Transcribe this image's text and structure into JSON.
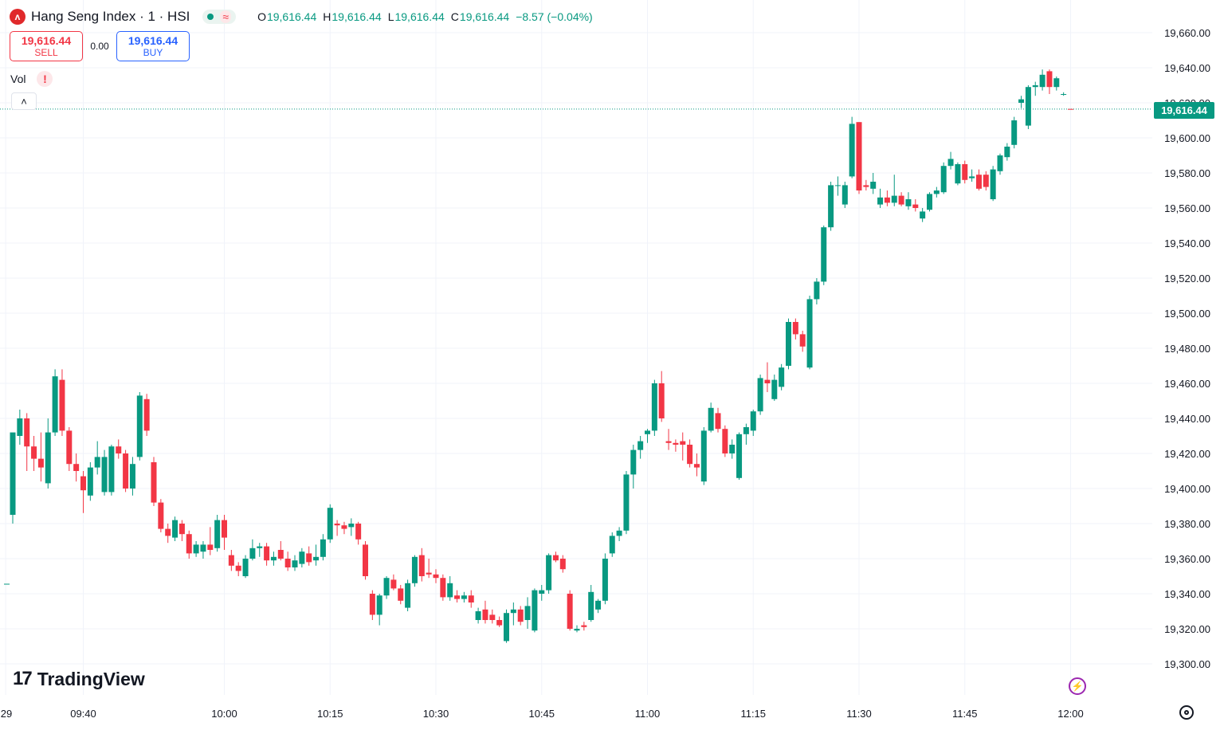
{
  "header": {
    "symbol_icon": "hang-seng-logo-icon",
    "symbol_icon_glyph": "ʌ",
    "title": "Hang Seng Index · 1 · HSI",
    "status_glyph": "≈",
    "ohlc": {
      "o_label": "O",
      "o": "19,616.44",
      "h_label": "H",
      "h": "19,616.44",
      "l_label": "L",
      "l": "19,616.44",
      "c_label": "C",
      "c": "19,616.44",
      "change": "−8.57 (−0.04%)"
    }
  },
  "trade": {
    "sell_price": "19,616.44",
    "sell_label": "SELL",
    "spread": "0.00",
    "buy_price": "19,616.44",
    "buy_label": "BUY"
  },
  "volume": {
    "label": "Vol",
    "warning": "!"
  },
  "collapse_glyph": "˄",
  "last_price_tag": "19,616.44",
  "logo": {
    "mark": "17",
    "text": "TradingView"
  },
  "colors": {
    "up": "#089981",
    "down": "#f23645",
    "grid": "#f0f3fa",
    "text": "#131722"
  },
  "chart_data": {
    "type": "candlestick",
    "y_tick_labels": [
      "19,660.00",
      "19,640.00",
      "19,620.00",
      "19,600.00",
      "19,580.00",
      "19,560.00",
      "19,540.00",
      "19,520.00",
      "19,500.00",
      "19,480.00",
      "19,460.00",
      "19,440.00",
      "19,420.00",
      "19,400.00",
      "19,380.00",
      "19,360.00",
      "19,340.00",
      "19,320.00",
      "19,300.00"
    ],
    "y_tick_values": [
      19660,
      19640,
      19620,
      19600,
      19580,
      19560,
      19540,
      19520,
      19500,
      19480,
      19460,
      19440,
      19420,
      19400,
      19380,
      19360,
      19340,
      19320,
      19300
    ],
    "ylim": [
      19295,
      19663
    ],
    "x_tick_labels": [
      "29",
      "09:40",
      "10:00",
      "10:15",
      "10:30",
      "10:45",
      "11:00",
      "11:15",
      "11:30",
      "11:45",
      "12:00"
    ],
    "x_tick_values": [
      "09:29",
      "09:40",
      "10:00",
      "10:15",
      "10:30",
      "10:45",
      "11:00",
      "11:15",
      "11:30",
      "11:45",
      "12:00"
    ],
    "last_price": 19616.44,
    "candles": [
      {
        "t": "09:30",
        "o": 19385,
        "h": 19430,
        "l": 19380,
        "c": 19432
      },
      {
        "t": "09:31",
        "o": 19430,
        "h": 19445,
        "l": 19425,
        "c": 19440
      },
      {
        "t": "09:32",
        "o": 19440,
        "h": 19443,
        "l": 19410,
        "c": 19424
      },
      {
        "t": "09:33",
        "o": 19424,
        "h": 19430,
        "l": 19410,
        "c": 19417
      },
      {
        "t": "09:34",
        "o": 19417,
        "h": 19432,
        "l": 19404,
        "c": 19412
      },
      {
        "t": "09:35",
        "o": 19403,
        "h": 19440,
        "l": 19400,
        "c": 19432
      },
      {
        "t": "09:36",
        "o": 19432,
        "h": 19468,
        "l": 19430,
        "c": 19464
      },
      {
        "t": "09:37",
        "o": 19462,
        "h": 19468,
        "l": 19430,
        "c": 19433
      },
      {
        "t": "09:38",
        "o": 19433,
        "h": 19435,
        "l": 19410,
        "c": 19414
      },
      {
        "t": "09:39",
        "o": 19414,
        "h": 19420,
        "l": 19404,
        "c": 19410
      },
      {
        "t": "09:40",
        "o": 19407,
        "h": 19410,
        "l": 19386,
        "c": 19399
      },
      {
        "t": "09:41",
        "o": 19396,
        "h": 19415,
        "l": 19393,
        "c": 19412
      },
      {
        "t": "09:42",
        "o": 19412,
        "h": 19427,
        "l": 19408,
        "c": 19418
      },
      {
        "t": "09:43",
        "o": 19398,
        "h": 19422,
        "l": 19396,
        "c": 19418
      },
      {
        "t": "09:44",
        "o": 19398,
        "h": 19425,
        "l": 19396,
        "c": 19424
      },
      {
        "t": "09:45",
        "o": 19424,
        "h": 19428,
        "l": 19417,
        "c": 19420
      },
      {
        "t": "09:46",
        "o": 19420,
        "h": 19422,
        "l": 19398,
        "c": 19400
      },
      {
        "t": "09:47",
        "o": 19400,
        "h": 19418,
        "l": 19396,
        "c": 19414
      },
      {
        "t": "09:48",
        "o": 19418,
        "h": 19455,
        "l": 19416,
        "c": 19453
      },
      {
        "t": "09:49",
        "o": 19451,
        "h": 19454,
        "l": 19430,
        "c": 19433
      },
      {
        "t": "09:50",
        "o": 19415,
        "h": 19418,
        "l": 19390,
        "c": 19392
      },
      {
        "t": "09:51",
        "o": 19392,
        "h": 19394,
        "l": 19375,
        "c": 19377
      },
      {
        "t": "09:52",
        "o": 19377,
        "h": 19380,
        "l": 19369,
        "c": 19373
      },
      {
        "t": "09:53",
        "o": 19372,
        "h": 19384,
        "l": 19370,
        "c": 19382
      },
      {
        "t": "09:54",
        "o": 19380,
        "h": 19382,
        "l": 19370,
        "c": 19374
      },
      {
        "t": "09:55",
        "o": 19374,
        "h": 19376,
        "l": 19360,
        "c": 19363
      },
      {
        "t": "09:56",
        "o": 19363,
        "h": 19370,
        "l": 19361,
        "c": 19368
      },
      {
        "t": "09:57",
        "o": 19364,
        "h": 19370,
        "l": 19360,
        "c": 19368
      },
      {
        "t": "09:58",
        "o": 19368,
        "h": 19378,
        "l": 19362,
        "c": 19365
      },
      {
        "t": "09:59",
        "o": 19366,
        "h": 19385,
        "l": 19364,
        "c": 19382
      },
      {
        "t": "10:00",
        "o": 19382,
        "h": 19385,
        "l": 19365,
        "c": 19372
      },
      {
        "t": "10:01",
        "o": 19362,
        "h": 19365,
        "l": 19353,
        "c": 19356
      },
      {
        "t": "10:02",
        "o": 19356,
        "h": 19358,
        "l": 19350,
        "c": 19353
      },
      {
        "t": "10:03",
        "o": 19350,
        "h": 19362,
        "l": 19349,
        "c": 19360
      },
      {
        "t": "10:04",
        "o": 19360,
        "h": 19371,
        "l": 19359,
        "c": 19366
      },
      {
        "t": "10:05",
        "o": 19366,
        "h": 19369,
        "l": 19361,
        "c": 19367
      },
      {
        "t": "10:06",
        "o": 19367,
        "h": 19369,
        "l": 19356,
        "c": 19359
      },
      {
        "t": "10:07",
        "o": 19359,
        "h": 19364,
        "l": 19356,
        "c": 19361
      },
      {
        "t": "10:08",
        "o": 19365,
        "h": 19370,
        "l": 19359,
        "c": 19360
      },
      {
        "t": "10:09",
        "o": 19360,
        "h": 19364,
        "l": 19353,
        "c": 19355
      },
      {
        "t": "10:10",
        "o": 19355,
        "h": 19362,
        "l": 19353,
        "c": 19359
      },
      {
        "t": "10:11",
        "o": 19357,
        "h": 19366,
        "l": 19355,
        "c": 19364
      },
      {
        "t": "10:12",
        "o": 19363,
        "h": 19367,
        "l": 19356,
        "c": 19358
      },
      {
        "t": "10:13",
        "o": 19359,
        "h": 19368,
        "l": 19356,
        "c": 19361
      },
      {
        "t": "10:14",
        "o": 19361,
        "h": 19374,
        "l": 19359,
        "c": 19371
      },
      {
        "t": "10:15",
        "o": 19371,
        "h": 19391,
        "l": 19369,
        "c": 19389
      },
      {
        "t": "10:16",
        "o": 19380,
        "h": 19382,
        "l": 19373,
        "c": 19379
      },
      {
        "t": "10:17",
        "o": 19379,
        "h": 19381,
        "l": 19374,
        "c": 19377
      },
      {
        "t": "10:18",
        "o": 19378,
        "h": 19383,
        "l": 19373,
        "c": 19380
      },
      {
        "t": "10:19",
        "o": 19380,
        "h": 19381,
        "l": 19368,
        "c": 19371
      },
      {
        "t": "10:20",
        "o": 19368,
        "h": 19370,
        "l": 19348,
        "c": 19350
      },
      {
        "t": "10:21",
        "o": 19340,
        "h": 19342,
        "l": 19325,
        "c": 19328
      },
      {
        "t": "10:22",
        "o": 19328,
        "h": 19340,
        "l": 19322,
        "c": 19339
      },
      {
        "t": "10:23",
        "o": 19339,
        "h": 19350,
        "l": 19337,
        "c": 19349
      },
      {
        "t": "10:24",
        "o": 19348,
        "h": 19351,
        "l": 19342,
        "c": 19343
      },
      {
        "t": "10:25",
        "o": 19343,
        "h": 19345,
        "l": 19334,
        "c": 19336
      },
      {
        "t": "10:26",
        "o": 19332,
        "h": 19348,
        "l": 19330,
        "c": 19346
      },
      {
        "t": "10:27",
        "o": 19346,
        "h": 19362,
        "l": 19344,
        "c": 19361
      },
      {
        "t": "10:28",
        "o": 19362,
        "h": 19366,
        "l": 19347,
        "c": 19350
      },
      {
        "t": "10:29",
        "o": 19352,
        "h": 19360,
        "l": 19349,
        "c": 19351
      },
      {
        "t": "10:30",
        "o": 19351,
        "h": 19354,
        "l": 19346,
        "c": 19349
      },
      {
        "t": "10:31",
        "o": 19349,
        "h": 19351,
        "l": 19336,
        "c": 19338
      },
      {
        "t": "10:32",
        "o": 19338,
        "h": 19350,
        "l": 19336,
        "c": 19346
      },
      {
        "t": "10:33",
        "o": 19339,
        "h": 19342,
        "l": 19335,
        "c": 19337
      },
      {
        "t": "10:34",
        "o": 19337,
        "h": 19341,
        "l": 19335,
        "c": 19339
      },
      {
        "t": "10:35",
        "o": 19339,
        "h": 19342,
        "l": 19332,
        "c": 19335
      },
      {
        "t": "10:36",
        "o": 19325,
        "h": 19332,
        "l": 19323,
        "c": 19330
      },
      {
        "t": "10:37",
        "o": 19331,
        "h": 19336,
        "l": 19323,
        "c": 19325
      },
      {
        "t": "10:38",
        "o": 19328,
        "h": 19331,
        "l": 19323,
        "c": 19325
      },
      {
        "t": "10:39",
        "o": 19325,
        "h": 19327,
        "l": 19321,
        "c": 19322
      },
      {
        "t": "10:40",
        "o": 19313,
        "h": 19331,
        "l": 19312,
        "c": 19329
      },
      {
        "t": "10:41",
        "o": 19329,
        "h": 19335,
        "l": 19322,
        "c": 19331
      },
      {
        "t": "10:42",
        "o": 19331,
        "h": 19333,
        "l": 19322,
        "c": 19324
      },
      {
        "t": "10:43",
        "o": 19325,
        "h": 19338,
        "l": 19320,
        "c": 19333
      },
      {
        "t": "10:44",
        "o": 19319,
        "h": 19343,
        "l": 19318,
        "c": 19342
      },
      {
        "t": "10:45",
        "o": 19340,
        "h": 19345,
        "l": 19336,
        "c": 19342
      },
      {
        "t": "10:46",
        "o": 19342,
        "h": 19363,
        "l": 19340,
        "c": 19362
      },
      {
        "t": "10:47",
        "o": 19362,
        "h": 19364,
        "l": 19358,
        "c": 19359
      },
      {
        "t": "10:48",
        "o": 19360,
        "h": 19362,
        "l": 19352,
        "c": 19354
      },
      {
        "t": "10:49",
        "o": 19340,
        "h": 19342,
        "l": 19319,
        "c": 19320
      },
      {
        "t": "10:50",
        "o": 19319,
        "h": 19322,
        "l": 19318,
        "c": 19320
      },
      {
        "t": "10:51",
        "o": 19322,
        "h": 19324,
        "l": 19319,
        "c": 19321
      },
      {
        "t": "10:52",
        "o": 19325,
        "h": 19345,
        "l": 19324,
        "c": 19341
      },
      {
        "t": "10:53",
        "o": 19331,
        "h": 19337,
        "l": 19329,
        "c": 19336
      },
      {
        "t": "10:54",
        "o": 19336,
        "h": 19363,
        "l": 19334,
        "c": 19360
      },
      {
        "t": "10:55",
        "o": 19363,
        "h": 19375,
        "l": 19361,
        "c": 19373
      },
      {
        "t": "10:56",
        "o": 19373,
        "h": 19378,
        "l": 19370,
        "c": 19376
      },
      {
        "t": "10:57",
        "o": 19376,
        "h": 19410,
        "l": 19374,
        "c": 19408
      },
      {
        "t": "10:58",
        "o": 19408,
        "h": 19425,
        "l": 19400,
        "c": 19422
      },
      {
        "t": "10:59",
        "o": 19422,
        "h": 19430,
        "l": 19417,
        "c": 19427
      },
      {
        "t": "11:00",
        "o": 19431,
        "h": 19434,
        "l": 19426,
        "c": 19433
      },
      {
        "t": "11:01",
        "o": 19433,
        "h": 19462,
        "l": 19430,
        "c": 19460
      },
      {
        "t": "11:02",
        "o": 19460,
        "h": 19467,
        "l": 19438,
        "c": 19440
      },
      {
        "t": "11:03",
        "o": 19427,
        "h": 19434,
        "l": 19422,
        "c": 19426
      },
      {
        "t": "11:04",
        "o": 19426,
        "h": 19428,
        "l": 19421,
        "c": 19425
      },
      {
        "t": "11:05",
        "o": 19427,
        "h": 19432,
        "l": 19416,
        "c": 19425
      },
      {
        "t": "11:06",
        "o": 19425,
        "h": 19428,
        "l": 19412,
        "c": 19414
      },
      {
        "t": "11:07",
        "o": 19414,
        "h": 19420,
        "l": 19407,
        "c": 19412
      },
      {
        "t": "11:08",
        "o": 19404,
        "h": 19435,
        "l": 19402,
        "c": 19433
      },
      {
        "t": "11:09",
        "o": 19433,
        "h": 19449,
        "l": 19432,
        "c": 19446
      },
      {
        "t": "11:10",
        "o": 19443,
        "h": 19446,
        "l": 19432,
        "c": 19434
      },
      {
        "t": "11:11",
        "o": 19434,
        "h": 19436,
        "l": 19418,
        "c": 19420
      },
      {
        "t": "11:12",
        "o": 19420,
        "h": 19428,
        "l": 19417,
        "c": 19425
      },
      {
        "t": "11:13",
        "o": 19406,
        "h": 19432,
        "l": 19405,
        "c": 19431
      },
      {
        "t": "11:14",
        "o": 19431,
        "h": 19437,
        "l": 19425,
        "c": 19435
      },
      {
        "t": "11:15",
        "o": 19433,
        "h": 19445,
        "l": 19430,
        "c": 19444
      },
      {
        "t": "11:16",
        "o": 19444,
        "h": 19465,
        "l": 19442,
        "c": 19463
      },
      {
        "t": "11:17",
        "o": 19462,
        "h": 19472,
        "l": 19455,
        "c": 19460
      },
      {
        "t": "11:18",
        "o": 19451,
        "h": 19465,
        "l": 19450,
        "c": 19462
      },
      {
        "t": "11:19",
        "o": 19458,
        "h": 19471,
        "l": 19456,
        "c": 19469
      },
      {
        "t": "11:20",
        "o": 19470,
        "h": 19497,
        "l": 19468,
        "c": 19495
      },
      {
        "t": "11:21",
        "o": 19495,
        "h": 19497,
        "l": 19485,
        "c": 19488
      },
      {
        "t": "11:22",
        "o": 19488,
        "h": 19490,
        "l": 19478,
        "c": 19481
      },
      {
        "t": "11:23",
        "o": 19469,
        "h": 19510,
        "l": 19468,
        "c": 19508
      },
      {
        "t": "11:24",
        "o": 19508,
        "h": 19520,
        "l": 19505,
        "c": 19518
      },
      {
        "t": "11:25",
        "o": 19518,
        "h": 19550,
        "l": 19516,
        "c": 19549
      },
      {
        "t": "11:26",
        "o": 19549,
        "h": 19575,
        "l": 19547,
        "c": 19573
      },
      {
        "t": "11:27",
        "o": 19573,
        "h": 19578,
        "l": 19567,
        "c": 19573
      },
      {
        "t": "11:28",
        "o": 19562,
        "h": 19575,
        "l": 19560,
        "c": 19573
      },
      {
        "t": "11:29",
        "o": 19578,
        "h": 19612,
        "l": 19577,
        "c": 19608
      },
      {
        "t": "11:30",
        "o": 19609,
        "h": 19609,
        "l": 19568,
        "c": 19570
      },
      {
        "t": "11:31",
        "o": 19573,
        "h": 19576,
        "l": 19570,
        "c": 19572
      },
      {
        "t": "11:32",
        "o": 19571,
        "h": 19580,
        "l": 19568,
        "c": 19575
      },
      {
        "t": "11:33",
        "o": 19562,
        "h": 19571,
        "l": 19560,
        "c": 19566
      },
      {
        "t": "11:34",
        "o": 19566,
        "h": 19570,
        "l": 19561,
        "c": 19563
      },
      {
        "t": "11:35",
        "o": 19563,
        "h": 19579,
        "l": 19561,
        "c": 19567
      },
      {
        "t": "11:36",
        "o": 19567,
        "h": 19569,
        "l": 19561,
        "c": 19562
      },
      {
        "t": "11:37",
        "o": 19561,
        "h": 19569,
        "l": 19559,
        "c": 19565
      },
      {
        "t": "11:38",
        "o": 19562,
        "h": 19565,
        "l": 19558,
        "c": 19560
      },
      {
        "t": "11:39",
        "o": 19554,
        "h": 19560,
        "l": 19552,
        "c": 19558
      },
      {
        "t": "11:40",
        "o": 19559,
        "h": 19569,
        "l": 19558,
        "c": 19568
      },
      {
        "t": "11:41",
        "o": 19568,
        "h": 19572,
        "l": 19566,
        "c": 19570
      },
      {
        "t": "11:42",
        "o": 19569,
        "h": 19586,
        "l": 19568,
        "c": 19584
      },
      {
        "t": "11:43",
        "o": 19584,
        "h": 19592,
        "l": 19582,
        "c": 19588
      },
      {
        "t": "11:44",
        "o": 19574,
        "h": 19586,
        "l": 19573,
        "c": 19585
      },
      {
        "t": "11:45",
        "o": 19585,
        "h": 19587,
        "l": 19574,
        "c": 19576
      },
      {
        "t": "11:46",
        "o": 19577,
        "h": 19582,
        "l": 19575,
        "c": 19578
      },
      {
        "t": "11:47",
        "o": 19579,
        "h": 19582,
        "l": 19570,
        "c": 19571
      },
      {
        "t": "11:48",
        "o": 19579,
        "h": 19581,
        "l": 19570,
        "c": 19572
      },
      {
        "t": "11:49",
        "o": 19565,
        "h": 19584,
        "l": 19564,
        "c": 19582
      },
      {
        "t": "11:50",
        "o": 19581,
        "h": 19591,
        "l": 19579,
        "c": 19590
      },
      {
        "t": "11:51",
        "o": 19589,
        "h": 19597,
        "l": 19587,
        "c": 19595
      },
      {
        "t": "11:52",
        "o": 19596,
        "h": 19612,
        "l": 19594,
        "c": 19610
      },
      {
        "t": "11:53",
        "o": 19620,
        "h": 19624,
        "l": 19617,
        "c": 19622
      },
      {
        "t": "11:54",
        "o": 19607,
        "h": 19630,
        "l": 19605,
        "c": 19629
      },
      {
        "t": "11:55",
        "o": 19629,
        "h": 19632,
        "l": 19624,
        "c": 19630
      },
      {
        "t": "11:56",
        "o": 19629,
        "h": 19639,
        "l": 19627,
        "c": 19636
      },
      {
        "t": "11:57",
        "o": 19638,
        "h": 19639,
        "l": 19625,
        "c": 19629
      },
      {
        "t": "11:58",
        "o": 19629,
        "h": 19635,
        "l": 19627,
        "c": 19634
      },
      {
        "t": "11:59",
        "o": 19625,
        "h": 19626,
        "l": 19624,
        "c": 19625
      },
      {
        "t": "12:00",
        "o": 19616.5,
        "h": 19616.6,
        "l": 19616.44,
        "c": 19616.44
      }
    ]
  }
}
